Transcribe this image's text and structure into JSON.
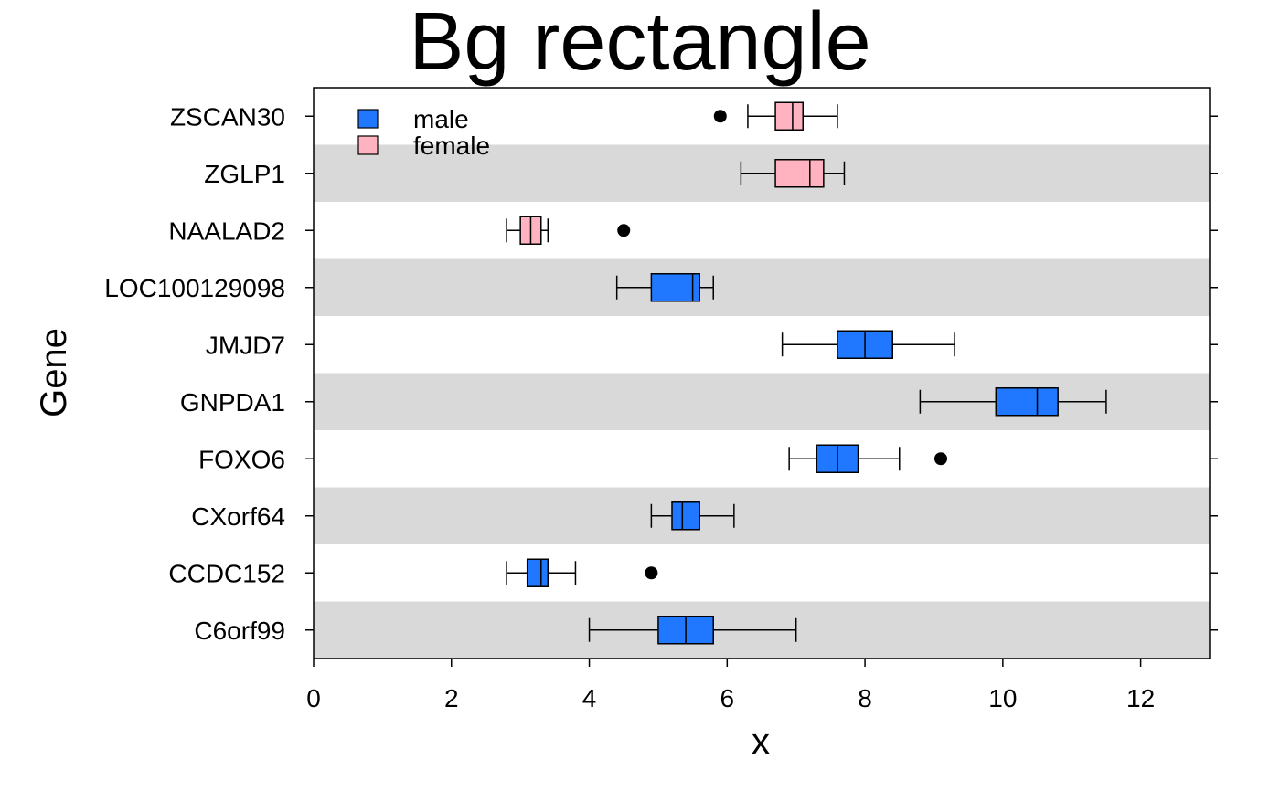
{
  "chart_data": {
    "type": "boxplot",
    "title": "Bg rectangle",
    "xlabel": "x",
    "ylabel": "Gene",
    "xlim": [
      0,
      13
    ],
    "x_ticks": [
      0,
      2,
      4,
      6,
      8,
      10,
      12
    ],
    "background": "alternating grey/white row bands",
    "legend_position": "top-left",
    "legend": [
      {
        "label": "male",
        "color": "#1f78ff"
      },
      {
        "label": "female",
        "color": "#ffb3c0"
      }
    ],
    "categories": [
      "ZSCAN30",
      "ZGLP1",
      "NAALAD2",
      "LOC100129098",
      "JMJD7",
      "GNPDA1",
      "FOXO6",
      "CXorf64",
      "CCDC152",
      "C6orf99"
    ],
    "boxes": [
      {
        "gene": "ZSCAN30",
        "group": "female",
        "whisker_low": 6.3,
        "q1": 6.7,
        "median": 6.95,
        "q3": 7.1,
        "whisker_high": 7.6,
        "outliers": [
          5.9
        ]
      },
      {
        "gene": "ZGLP1",
        "group": "female",
        "whisker_low": 6.2,
        "q1": 6.7,
        "median": 7.2,
        "q3": 7.4,
        "whisker_high": 7.7,
        "outliers": []
      },
      {
        "gene": "NAALAD2",
        "group": "female",
        "whisker_low": 2.8,
        "q1": 3.0,
        "median": 3.15,
        "q3": 3.3,
        "whisker_high": 3.4,
        "outliers": [
          4.5
        ]
      },
      {
        "gene": "LOC100129098",
        "group": "male",
        "whisker_low": 4.4,
        "q1": 4.9,
        "median": 5.5,
        "q3": 5.6,
        "whisker_high": 5.8,
        "outliers": []
      },
      {
        "gene": "JMJD7",
        "group": "male",
        "whisker_low": 6.8,
        "q1": 7.6,
        "median": 8.0,
        "q3": 8.4,
        "whisker_high": 9.3,
        "outliers": []
      },
      {
        "gene": "GNPDA1",
        "group": "male",
        "whisker_low": 8.8,
        "q1": 9.9,
        "median": 10.5,
        "q3": 10.8,
        "whisker_high": 11.5,
        "outliers": []
      },
      {
        "gene": "FOXO6",
        "group": "male",
        "whisker_low": 6.9,
        "q1": 7.3,
        "median": 7.6,
        "q3": 7.9,
        "whisker_high": 8.5,
        "outliers": [
          9.1
        ]
      },
      {
        "gene": "CXorf64",
        "group": "male",
        "whisker_low": 4.9,
        "q1": 5.2,
        "median": 5.35,
        "q3": 5.6,
        "whisker_high": 6.1,
        "outliers": []
      },
      {
        "gene": "CCDC152",
        "group": "male",
        "whisker_low": 2.8,
        "q1": 3.1,
        "median": 3.3,
        "q3": 3.4,
        "whisker_high": 3.8,
        "outliers": [
          4.9
        ]
      },
      {
        "gene": "C6orf99",
        "group": "male",
        "whisker_low": 4.0,
        "q1": 5.0,
        "median": 5.4,
        "q3": 5.8,
        "whisker_high": 7.0,
        "outliers": []
      }
    ]
  }
}
